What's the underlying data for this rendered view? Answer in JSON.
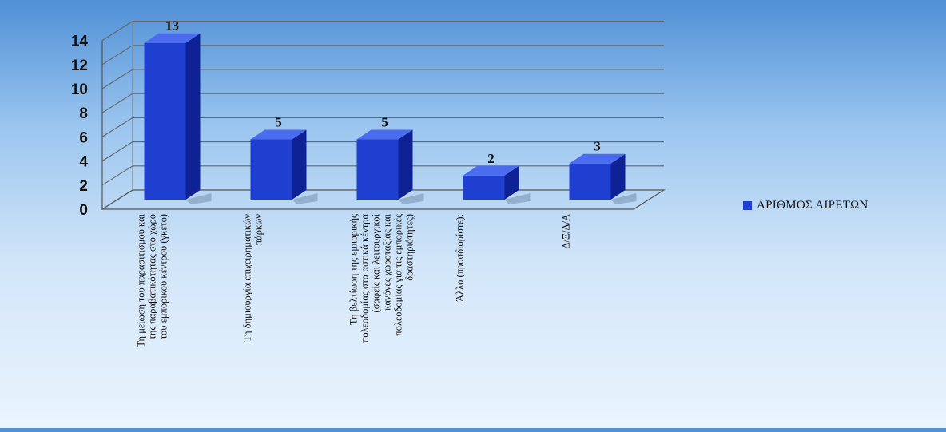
{
  "chart_data": {
    "type": "bar",
    "style": "3d-column",
    "categories": [
      "Τη μείωση του παρασιτισμού και της παραβατικότητας στο χώρο του εμπορικού κέντρου (γκέτο)",
      "Τη δημιουργία επιχειρηματικών πάρκων",
      "Τη βελτίωση της εμπορικής πολεοδομίας στα αστικά κέντρα (σαφείς και λειτουργικοί κανόνες χωροταξίας και πολεοδομίας για τις εμπορικές δραστηριότητες)",
      "Άλλο (προσδιορίστε):",
      "Δ/Ξ/Δ/Α"
    ],
    "values": [
      13,
      5,
      5,
      2,
      3
    ],
    "data_labels": [
      "13",
      "5",
      "5",
      "2",
      "3"
    ],
    "series": [
      {
        "name": "ΑΡΙΘΜΟΣ ΑΙΡΕΤΩΝ",
        "values": [
          13,
          5,
          5,
          2,
          3
        ]
      }
    ],
    "yticks": [
      "0",
      "2",
      "4",
      "6",
      "8",
      "10",
      "12",
      "14"
    ],
    "ylim": [
      0,
      14
    ],
    "grid": true,
    "legend_position": "right",
    "colors": {
      "bar_front": "#1f3fd0",
      "bar_side": "#0e2296",
      "bar_top": "#4c6cf0",
      "grid": "#666666"
    },
    "xlabel": "",
    "ylabel": "",
    "title": ""
  }
}
